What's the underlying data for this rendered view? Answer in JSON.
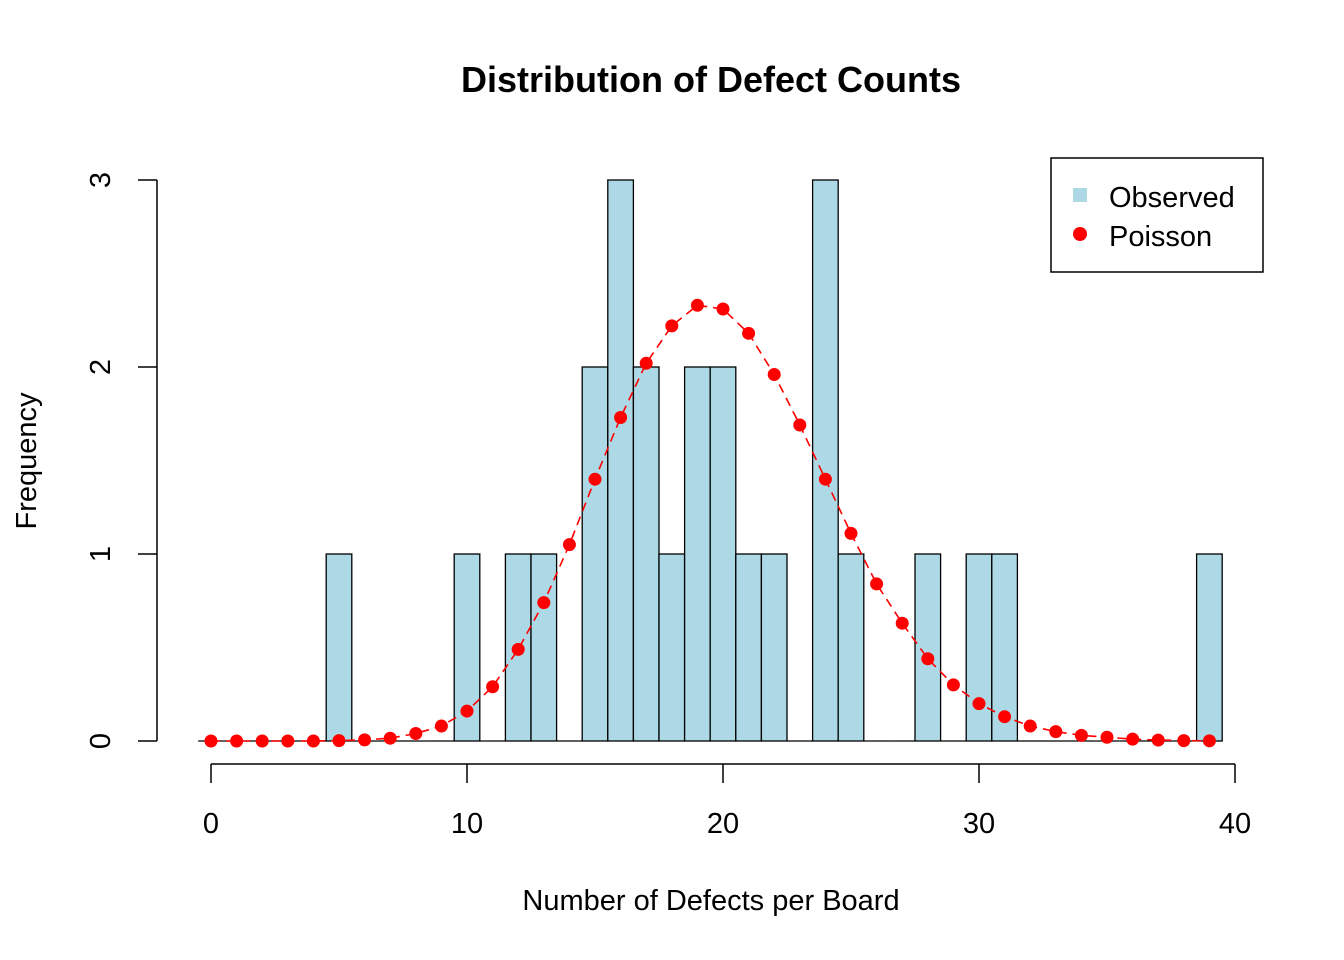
{
  "chart_data": {
    "type": "bar",
    "title": "Distribution of Defect Counts",
    "xlabel": "Number of Defects per Board",
    "ylabel": "Frequency",
    "xlim": [
      0,
      40
    ],
    "ylim": [
      0,
      3
    ],
    "x_ticks": [
      0,
      10,
      20,
      30,
      40
    ],
    "y_ticks": [
      0,
      1,
      2,
      3
    ],
    "grid": false,
    "legend_position": "top-right",
    "legend": [
      {
        "label": "Observed",
        "symbol": "square",
        "color": "#ADD8E6"
      },
      {
        "label": "Poisson",
        "symbol": "circle",
        "color": "#FF0000"
      }
    ],
    "series": [
      {
        "name": "Observed",
        "kind": "bar",
        "color": "#ADD8E6",
        "x": [
          0,
          1,
          2,
          3,
          4,
          5,
          6,
          7,
          8,
          9,
          10,
          11,
          12,
          13,
          14,
          15,
          16,
          17,
          18,
          19,
          20,
          21,
          22,
          23,
          24,
          25,
          26,
          27,
          28,
          29,
          30,
          31,
          32,
          33,
          34,
          35,
          36,
          37,
          38,
          39
        ],
        "values": [
          0,
          0,
          0,
          0,
          0,
          1,
          0,
          0,
          0,
          0,
          1,
          0,
          1,
          1,
          0,
          2,
          3,
          2,
          1,
          2,
          2,
          1,
          1,
          0,
          3,
          1,
          0,
          0,
          1,
          0,
          1,
          1,
          0,
          0,
          0,
          0,
          0,
          0,
          0,
          1
        ]
      },
      {
        "name": "Poisson",
        "kind": "line-points",
        "line_style": "dashed",
        "color": "#FF0000",
        "x": [
          0,
          1,
          2,
          3,
          4,
          5,
          6,
          7,
          8,
          9,
          10,
          11,
          12,
          13,
          14,
          15,
          16,
          17,
          18,
          19,
          20,
          21,
          22,
          23,
          24,
          25,
          26,
          27,
          28,
          29,
          30,
          31,
          32,
          33,
          34,
          35,
          36,
          37,
          38,
          39
        ],
        "values": [
          0,
          0,
          0,
          0,
          0,
          0.002,
          0.006,
          0.015,
          0.04,
          0.08,
          0.16,
          0.29,
          0.49,
          0.74,
          1.05,
          1.4,
          1.73,
          2.02,
          2.22,
          2.33,
          2.31,
          2.18,
          1.96,
          1.69,
          1.4,
          1.11,
          0.84,
          0.63,
          0.44,
          0.3,
          0.2,
          0.13,
          0.08,
          0.05,
          0.03,
          0.02,
          0.01,
          0.005,
          0.002,
          0.001
        ]
      }
    ]
  }
}
